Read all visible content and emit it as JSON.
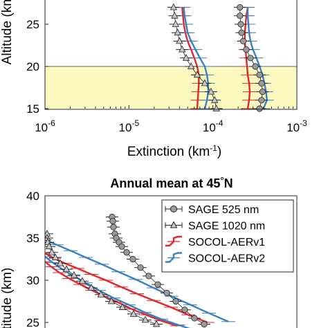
{
  "chart_data": [
    {
      "type": "line",
      "title": "",
      "xlabel": "Extinction (km",
      "xlabel_sup": "-1",
      "xlabel_tail": ")",
      "ylabel": "Altitude (km)",
      "xscale": "log",
      "xlim": [
        1e-06,
        0.001
      ],
      "ylim": [
        15,
        30
      ],
      "xticks": [
        {
          "v": 1e-06,
          "base": "10",
          "exp": "-6"
        },
        {
          "v": 1e-05,
          "base": "10",
          "exp": "-5"
        },
        {
          "v": 0.0001,
          "base": "10",
          "exp": "-4"
        },
        {
          "v": 0.001,
          "base": "10",
          "exp": "-3"
        }
      ],
      "yticks": [
        15,
        20,
        25
      ],
      "shaded_band": {
        "y": [
          15,
          20
        ],
        "color": "#fbf8c0"
      },
      "series": [
        {
          "key": "sage525",
          "color": "#9a9a9a",
          "marker": "circle",
          "x": [
            0.00036,
            0.00038,
            0.00039,
            0.00038,
            0.00036,
            0.00032,
            0.00028,
            0.00025,
            0.00023,
            0.00022,
            0.000215,
            0.00021,
            0.00021
          ],
          "y": [
            15,
            16,
            17,
            18,
            19,
            20,
            21,
            22,
            23,
            24,
            25,
            26,
            27
          ]
        },
        {
          "key": "sage1020",
          "color": "#9a9a9a",
          "marker": "triangle",
          "x": [
            0.00011,
            0.000105,
            9.5e-05,
            8e-05,
            6.5e-05,
            5.5e-05,
            4.8e-05,
            4.3e-05,
            4e-05,
            3.8e-05,
            3.6e-05,
            3.5e-05,
            3.4e-05
          ],
          "y": [
            15,
            16,
            17,
            18,
            19,
            20,
            21,
            22,
            23,
            24,
            25,
            26,
            27
          ]
        },
        {
          "key": "aer1_525",
          "color": "#e3262b",
          "marker": "none",
          "x": [
            0.00026,
            0.00027,
            0.000275,
            0.00027,
            0.00026,
            0.000255,
            0.00025,
            0.000245,
            0.00024,
            0.00024,
            0.000245,
            0.00025,
            0.00026
          ],
          "y": [
            15,
            16,
            17,
            18,
            19,
            20,
            21,
            22,
            23,
            24,
            25,
            26,
            27
          ]
        },
        {
          "key": "aer1_1020",
          "color": "#e3262b",
          "marker": "none",
          "x": [
            6.5e-05,
            6.6e-05,
            6.7e-05,
            6.8e-05,
            6.8e-05,
            6.5e-05,
            6e-05,
            5.5e-05,
            5e-05,
            4.7e-05,
            4.5e-05,
            4.4e-05,
            4.3e-05
          ],
          "y": [
            15,
            16,
            17,
            18,
            19,
            20,
            21,
            22,
            23,
            24,
            25,
            26,
            27
          ]
        },
        {
          "key": "aer2_525",
          "color": "#3a7fc1",
          "marker": "none",
          "x": [
            0.0004,
            0.00044,
            0.00043,
            0.00041,
            0.00039,
            0.00036,
            0.00033,
            0.0003,
            0.00028,
            0.00027,
            0.000265,
            0.00026,
            0.00026
          ],
          "y": [
            15,
            16,
            17,
            18,
            19,
            20,
            21,
            22,
            23,
            24,
            25,
            26,
            27
          ]
        },
        {
          "key": "aer2_1020",
          "color": "#3a7fc1",
          "marker": "none",
          "x": [
            8e-05,
            8.5e-05,
            8.8e-05,
            8.8e-05,
            8.5e-05,
            8e-05,
            7e-05,
            6.2e-05,
            5.5e-05,
            5e-05,
            4.8e-05,
            4.6e-05,
            4.5e-05
          ],
          "y": [
            15,
            16,
            17,
            18,
            19,
            20,
            21,
            22,
            23,
            24,
            25,
            26,
            27
          ]
        }
      ]
    },
    {
      "type": "line",
      "title": "Annual mean at 45",
      "title_deg": "°",
      "title_tail": "N",
      "ylabel": "Altitude (km)",
      "ylim": [
        25,
        40
      ],
      "yticks": [
        25,
        30,
        35,
        40
      ],
      "legend": {
        "position": "top-right",
        "items": [
          {
            "label": "SAGE 525 nm",
            "color": "#9a9a9a",
            "marker": "circle"
          },
          {
            "label": "SAGE 1020 nm",
            "color": "#9a9a9a",
            "marker": "triangle"
          },
          {
            "label": "SOCOL-AERv1",
            "color": "#e3262b",
            "marker": "line"
          },
          {
            "label": "SOCOL-AERv2",
            "color": "#3a7fc1",
            "marker": "line"
          }
        ]
      },
      "series": [
        {
          "key": "sage525",
          "color": "#9a9a9a",
          "marker": "circle",
          "xpix": [
            162,
            163,
            164,
            166,
            168,
            172,
            176,
            183,
            192,
            203,
            215,
            228,
            241,
            254,
            267,
            281,
            295
          ],
          "y": [
            37.5,
            37,
            36.3,
            35.5,
            35,
            34.5,
            34,
            33.3,
            32.5,
            31.5,
            30.5,
            29.5,
            28.5,
            27.5,
            26.5,
            25.5,
            24.8
          ]
        },
        {
          "key": "sage1020",
          "color": "#9a9a9a",
          "marker": "triangle",
          "xpix": [
            68,
            68,
            69,
            71,
            75,
            80,
            87,
            96,
            107,
            119,
            132,
            146,
            161,
            177,
            193,
            210,
            226
          ],
          "y": [
            35.5,
            35,
            34.5,
            34,
            33.3,
            32.7,
            32,
            31.3,
            30.6,
            29.9,
            29.1,
            28.3,
            27.5,
            26.8,
            26,
            25.3,
            24.8
          ]
        },
        {
          "key": "aer1_525",
          "color": "#e3262b",
          "marker": "none",
          "xpix": [
            65,
            78,
            94,
            112,
            132,
            153,
            175,
            198,
            222,
            247,
            272,
            300
          ],
          "y": [
            33.2,
            32.6,
            32,
            31.4,
            30.7,
            30,
            29.2,
            28.4,
            27.6,
            26.8,
            25.9,
            25
          ]
        },
        {
          "key": "aer1_1020",
          "color": "#e3262b",
          "marker": "none",
          "xpix": [
            65,
            74,
            86,
            100,
            116,
            133,
            151,
            170,
            190,
            211,
            233,
            256
          ],
          "y": [
            32.2,
            31.6,
            30.9,
            30.2,
            29.5,
            28.8,
            28.1,
            27.4,
            26.6,
            25.9,
            25.2,
            24.6
          ]
        },
        {
          "key": "aer2_525",
          "color": "#3a7fc1",
          "marker": "none",
          "xpix": [
            65,
            82,
            102,
            124,
            147,
            171,
            196,
            222,
            248,
            275,
            302,
            330
          ],
          "y": [
            34.8,
            34.2,
            33.5,
            32.7,
            31.9,
            31,
            30.1,
            29.1,
            28.1,
            27.1,
            26.1,
            25.1
          ]
        },
        {
          "key": "aer2_1020",
          "color": "#3a7fc1",
          "marker": "none",
          "xpix": [
            65,
            76,
            90,
            106,
            124,
            143,
            164,
            186,
            209,
            233,
            258,
            284
          ],
          "y": [
            32.8,
            32.1,
            31.3,
            30.5,
            29.7,
            28.8,
            27.9,
            27.1,
            26.2,
            25.4,
            24.7,
            24
          ]
        }
      ]
    }
  ]
}
